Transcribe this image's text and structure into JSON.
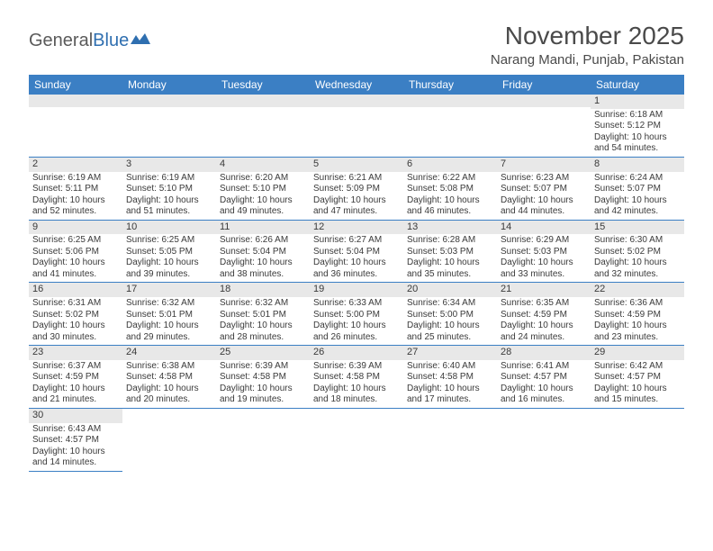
{
  "logo": {
    "text_part1": "General",
    "text_part2": "Blue"
  },
  "title": "November 2025",
  "location": "Narang Mandi, Punjab, Pakistan",
  "colors": {
    "header_bg": "#3b7fc4",
    "header_text": "#ffffff",
    "daynum_bg": "#e8e8e8",
    "cell_border": "#3b7fc4",
    "title_color": "#4a4a4a",
    "logo_gray": "#5a5a5a",
    "logo_blue": "#2f6fb0",
    "body_text": "#3a3a3a",
    "page_bg": "#ffffff",
    "blank_row_bg": "#f0f0f0"
  },
  "typography": {
    "title_fontsize": 28,
    "location_fontsize": 15,
    "dayheader_fontsize": 12,
    "daynum_fontsize": 11,
    "cell_fontsize": 10,
    "font_family": "Arial"
  },
  "day_headers": [
    "Sunday",
    "Monday",
    "Tuesday",
    "Wednesday",
    "Thursday",
    "Friday",
    "Saturday"
  ],
  "weeks": [
    [
      null,
      null,
      null,
      null,
      null,
      null,
      {
        "num": "1",
        "sunrise": "Sunrise: 6:18 AM",
        "sunset": "Sunset: 5:12 PM",
        "daylight": "Daylight: 10 hours and 54 minutes."
      }
    ],
    [
      {
        "num": "2",
        "sunrise": "Sunrise: 6:19 AM",
        "sunset": "Sunset: 5:11 PM",
        "daylight": "Daylight: 10 hours and 52 minutes."
      },
      {
        "num": "3",
        "sunrise": "Sunrise: 6:19 AM",
        "sunset": "Sunset: 5:10 PM",
        "daylight": "Daylight: 10 hours and 51 minutes."
      },
      {
        "num": "4",
        "sunrise": "Sunrise: 6:20 AM",
        "sunset": "Sunset: 5:10 PM",
        "daylight": "Daylight: 10 hours and 49 minutes."
      },
      {
        "num": "5",
        "sunrise": "Sunrise: 6:21 AM",
        "sunset": "Sunset: 5:09 PM",
        "daylight": "Daylight: 10 hours and 47 minutes."
      },
      {
        "num": "6",
        "sunrise": "Sunrise: 6:22 AM",
        "sunset": "Sunset: 5:08 PM",
        "daylight": "Daylight: 10 hours and 46 minutes."
      },
      {
        "num": "7",
        "sunrise": "Sunrise: 6:23 AM",
        "sunset": "Sunset: 5:07 PM",
        "daylight": "Daylight: 10 hours and 44 minutes."
      },
      {
        "num": "8",
        "sunrise": "Sunrise: 6:24 AM",
        "sunset": "Sunset: 5:07 PM",
        "daylight": "Daylight: 10 hours and 42 minutes."
      }
    ],
    [
      {
        "num": "9",
        "sunrise": "Sunrise: 6:25 AM",
        "sunset": "Sunset: 5:06 PM",
        "daylight": "Daylight: 10 hours and 41 minutes."
      },
      {
        "num": "10",
        "sunrise": "Sunrise: 6:25 AM",
        "sunset": "Sunset: 5:05 PM",
        "daylight": "Daylight: 10 hours and 39 minutes."
      },
      {
        "num": "11",
        "sunrise": "Sunrise: 6:26 AM",
        "sunset": "Sunset: 5:04 PM",
        "daylight": "Daylight: 10 hours and 38 minutes."
      },
      {
        "num": "12",
        "sunrise": "Sunrise: 6:27 AM",
        "sunset": "Sunset: 5:04 PM",
        "daylight": "Daylight: 10 hours and 36 minutes."
      },
      {
        "num": "13",
        "sunrise": "Sunrise: 6:28 AM",
        "sunset": "Sunset: 5:03 PM",
        "daylight": "Daylight: 10 hours and 35 minutes."
      },
      {
        "num": "14",
        "sunrise": "Sunrise: 6:29 AM",
        "sunset": "Sunset: 5:03 PM",
        "daylight": "Daylight: 10 hours and 33 minutes."
      },
      {
        "num": "15",
        "sunrise": "Sunrise: 6:30 AM",
        "sunset": "Sunset: 5:02 PM",
        "daylight": "Daylight: 10 hours and 32 minutes."
      }
    ],
    [
      {
        "num": "16",
        "sunrise": "Sunrise: 6:31 AM",
        "sunset": "Sunset: 5:02 PM",
        "daylight": "Daylight: 10 hours and 30 minutes."
      },
      {
        "num": "17",
        "sunrise": "Sunrise: 6:32 AM",
        "sunset": "Sunset: 5:01 PM",
        "daylight": "Daylight: 10 hours and 29 minutes."
      },
      {
        "num": "18",
        "sunrise": "Sunrise: 6:32 AM",
        "sunset": "Sunset: 5:01 PM",
        "daylight": "Daylight: 10 hours and 28 minutes."
      },
      {
        "num": "19",
        "sunrise": "Sunrise: 6:33 AM",
        "sunset": "Sunset: 5:00 PM",
        "daylight": "Daylight: 10 hours and 26 minutes."
      },
      {
        "num": "20",
        "sunrise": "Sunrise: 6:34 AM",
        "sunset": "Sunset: 5:00 PM",
        "daylight": "Daylight: 10 hours and 25 minutes."
      },
      {
        "num": "21",
        "sunrise": "Sunrise: 6:35 AM",
        "sunset": "Sunset: 4:59 PM",
        "daylight": "Daylight: 10 hours and 24 minutes."
      },
      {
        "num": "22",
        "sunrise": "Sunrise: 6:36 AM",
        "sunset": "Sunset: 4:59 PM",
        "daylight": "Daylight: 10 hours and 23 minutes."
      }
    ],
    [
      {
        "num": "23",
        "sunrise": "Sunrise: 6:37 AM",
        "sunset": "Sunset: 4:59 PM",
        "daylight": "Daylight: 10 hours and 21 minutes."
      },
      {
        "num": "24",
        "sunrise": "Sunrise: 6:38 AM",
        "sunset": "Sunset: 4:58 PM",
        "daylight": "Daylight: 10 hours and 20 minutes."
      },
      {
        "num": "25",
        "sunrise": "Sunrise: 6:39 AM",
        "sunset": "Sunset: 4:58 PM",
        "daylight": "Daylight: 10 hours and 19 minutes."
      },
      {
        "num": "26",
        "sunrise": "Sunrise: 6:39 AM",
        "sunset": "Sunset: 4:58 PM",
        "daylight": "Daylight: 10 hours and 18 minutes."
      },
      {
        "num": "27",
        "sunrise": "Sunrise: 6:40 AM",
        "sunset": "Sunset: 4:58 PM",
        "daylight": "Daylight: 10 hours and 17 minutes."
      },
      {
        "num": "28",
        "sunrise": "Sunrise: 6:41 AM",
        "sunset": "Sunset: 4:57 PM",
        "daylight": "Daylight: 10 hours and 16 minutes."
      },
      {
        "num": "29",
        "sunrise": "Sunrise: 6:42 AM",
        "sunset": "Sunset: 4:57 PM",
        "daylight": "Daylight: 10 hours and 15 minutes."
      }
    ],
    [
      {
        "num": "30",
        "sunrise": "Sunrise: 6:43 AM",
        "sunset": "Sunset: 4:57 PM",
        "daylight": "Daylight: 10 hours and 14 minutes."
      },
      null,
      null,
      null,
      null,
      null,
      null
    ]
  ]
}
